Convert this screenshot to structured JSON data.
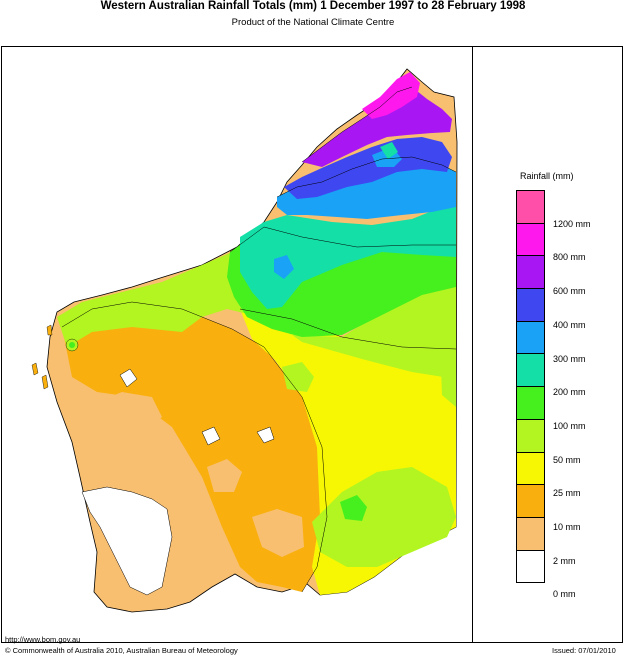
{
  "title": "Western Australian Rainfall Totals (mm) 1 December 1997 to 28 February 1998",
  "subtitle": "Product of the National Climate Centre",
  "legend": {
    "title": "Rainfall (mm)",
    "bands": [
      {
        "color": "#ff4fa8",
        "label": ""
      },
      {
        "color": "#ff18ee",
        "label": "1200 mm"
      },
      {
        "color": "#a816f4",
        "label": "800 mm"
      },
      {
        "color": "#3f47f0",
        "label": "600 mm"
      },
      {
        "color": "#1aa3f6",
        "label": "400 mm"
      },
      {
        "color": "#14dfa6",
        "label": "300 mm"
      },
      {
        "color": "#46f01f",
        "label": "200 mm"
      },
      {
        "color": "#b2f520",
        "label": "100 mm"
      },
      {
        "color": "#f7f704",
        "label": "50 mm"
      },
      {
        "color": "#f9b00e",
        "label": "25 mm"
      },
      {
        "color": "#f9bf70",
        "label": "10 mm"
      },
      {
        "color": "#ffffff",
        "label": "2 mm"
      }
    ],
    "bottom_label": "0 mm"
  },
  "footer": {
    "url": "http://www.bom.gov.au",
    "copyright": "© Commonwealth of Australia 2010, Australian Bureau of Meteorology",
    "issued": "Issued: 07/01/2010"
  }
}
